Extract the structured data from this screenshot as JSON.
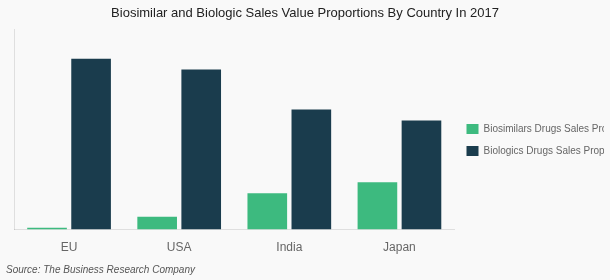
{
  "chart_data": {
    "type": "bar",
    "title": "Biosimilar and Biologic Sales Value Proportions By Country In 2017",
    "source": "Source: The Business Research Company",
    "categories": [
      "EU",
      "USA",
      "India",
      "Japan"
    ],
    "series": [
      {
        "name": "Biosimilars Drugs Sales Proportion (%)",
        "color": "#3dba7f",
        "values": [
          0.5,
          3.5,
          10.0,
          13.0
        ]
      },
      {
        "name": "Biologics Drugs Sales Proportion (%)",
        "color": "#1a3c4d",
        "values": [
          47.0,
          44.0,
          33.0,
          30.0
        ]
      }
    ],
    "ylim": [
      0,
      55
    ],
    "grid": false,
    "legend": "right",
    "tick_labels": "x"
  }
}
